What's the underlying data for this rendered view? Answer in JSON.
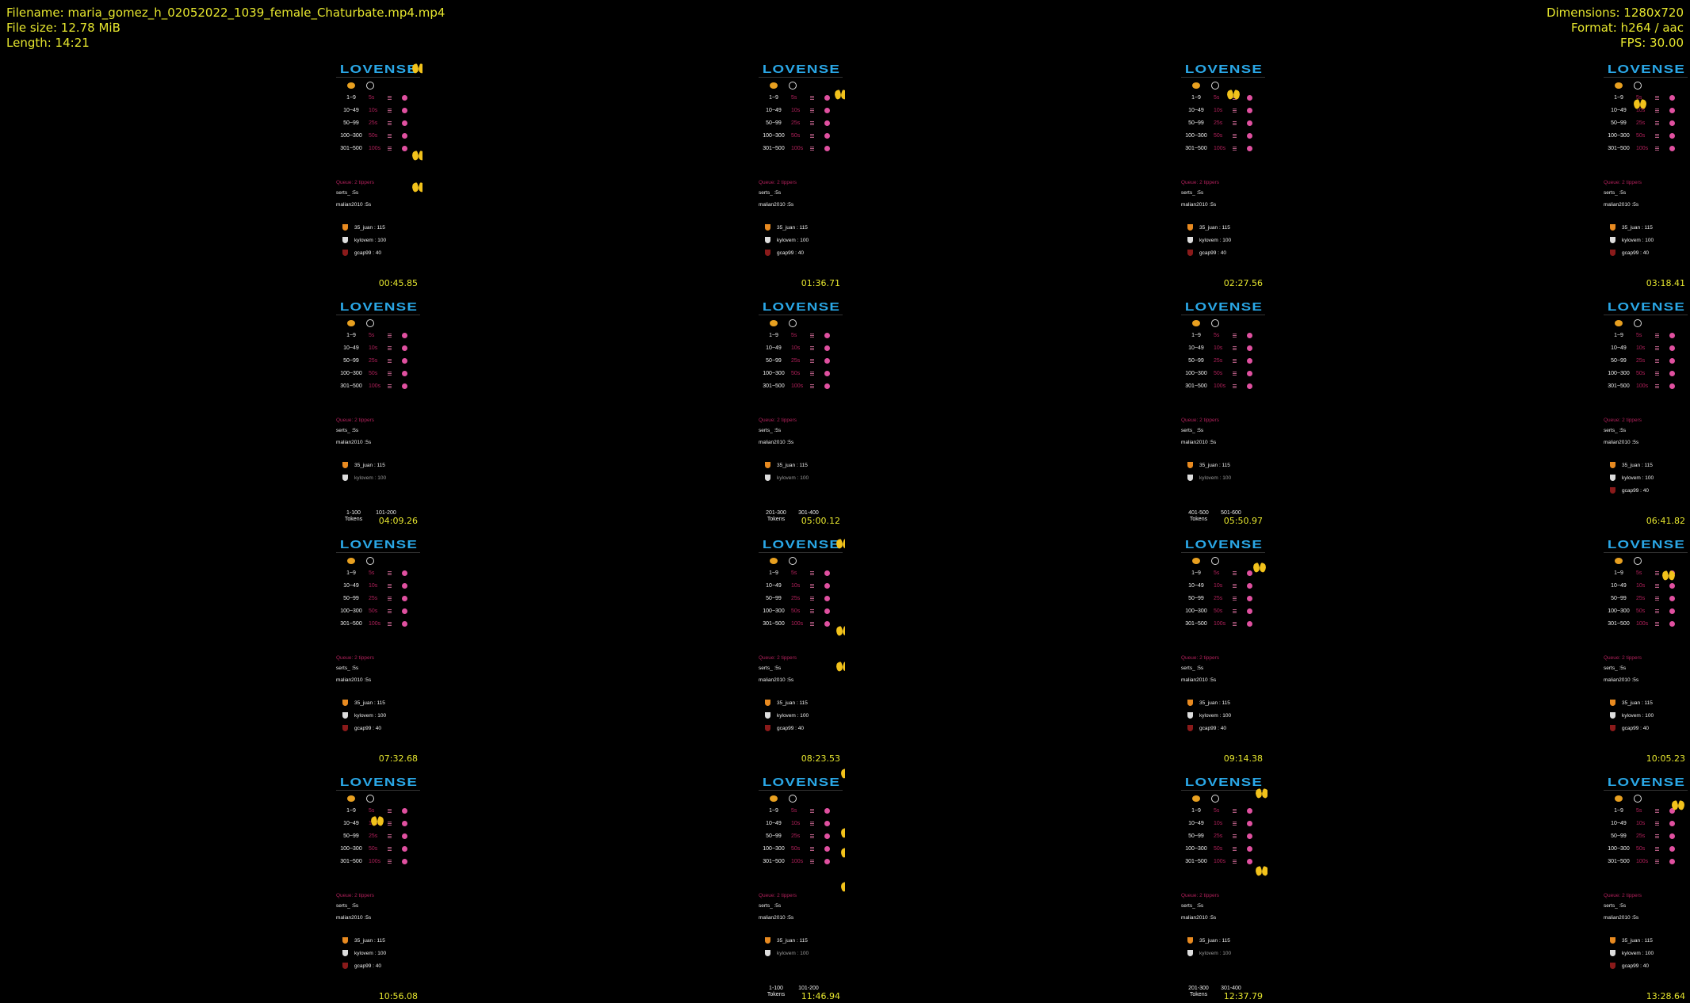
{
  "header": {
    "filename": "Filename: maria_gomez_h_02052022_1039_female_Chaturbate.mp4.mp4",
    "filesize": "File size: 12.78 MiB",
    "length": "Length: 14:21",
    "dimensions": "Dimensions: 1280x720",
    "format": "Format: h264 / aac",
    "fps": "FPS: 30.00"
  },
  "colors": {
    "meta_text": "#e6e62e",
    "logo": "#2aa7e6",
    "accent_pink": "#b0205a"
  },
  "panel": {
    "logo": "LOVENSE",
    "levels": [
      {
        "range": "1~9",
        "duration": "5s"
      },
      {
        "range": "10~49",
        "duration": "10s"
      },
      {
        "range": "50~99",
        "duration": "25s"
      },
      {
        "range": "100~300",
        "duration": "50s"
      },
      {
        "range": "301~500",
        "duration": "100s"
      }
    ],
    "queue_title": "Queue: 2 tippers",
    "queue": [
      "serts_  :5s",
      "malian2010  :5s"
    ],
    "leaders": [
      "35_juan : 115",
      "kylovem : 100",
      "gcap99 : 40"
    ]
  },
  "thumbnails": [
    {
      "time": "00:45.85"
    },
    {
      "time": "01:36.71"
    },
    {
      "time": "02:27.56"
    },
    {
      "time": "03:18.41"
    },
    {
      "time": "04:09.26",
      "tokens": [
        "1-100 Tokens",
        "101-200"
      ]
    },
    {
      "time": "05:00.12",
      "tokens": [
        "201-300 Tokens",
        "301-400"
      ]
    },
    {
      "time": "05:50.97",
      "tokens": [
        "401-500 Tokens",
        "501-600"
      ]
    },
    {
      "time": "06:41.82"
    },
    {
      "time": "07:32.68"
    },
    {
      "time": "08:23.53"
    },
    {
      "time": "09:14.38"
    },
    {
      "time": "10:05.23"
    },
    {
      "time": "10:56.08"
    },
    {
      "time": "11:46.94",
      "tokens": [
        "1-100 Tokens",
        "101-200"
      ]
    },
    {
      "time": "12:37.79",
      "tokens": [
        "201-300 Tokens",
        "301-400"
      ]
    },
    {
      "time": "13:28.64"
    }
  ]
}
